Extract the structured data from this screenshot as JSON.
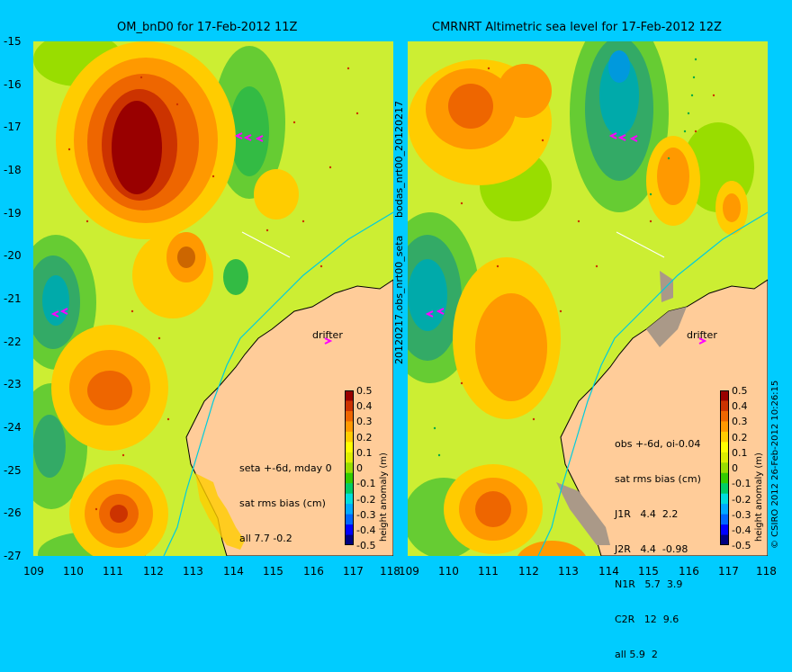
{
  "panels": [
    {
      "title": "OM_bnD0 for 17-Feb-2012 11Z",
      "stats": [
        "seta +-6d, mday 0",
        "sat rms bias (cm)",
        "all 7.7 -0.2"
      ],
      "drifter_label": "drifter"
    },
    {
      "title": "CMRNRT Altimetric sea level  for 17-Feb-2012 12Z",
      "stats": [
        "obs +-6d, oi-0.04",
        "sat rms bias (cm)",
        "J1R   4.4  2.2",
        "J2R   4.4  -0.98",
        "N1R   5.7  3.9",
        "C2R   12  9.6",
        "all 5.9  2"
      ],
      "drifter_label": "drifter"
    }
  ],
  "axes": {
    "lat_ticks": [
      "-15",
      "-16",
      "-17",
      "-18",
      "-19",
      "-20",
      "-21",
      "-22",
      "-23",
      "-24",
      "-25",
      "-26",
      "-27"
    ],
    "lon_ticks": [
      "109",
      "110",
      "111",
      "112",
      "113",
      "114",
      "115",
      "116",
      "117",
      "118"
    ]
  },
  "middle_labels": {
    "top": "bodas_nrt00_20120217",
    "bottom": "20120217.obs_nrt00_seta"
  },
  "colorbar": {
    "label": "height anomaly (m)",
    "ticks": [
      "0.5",
      "0.4",
      "0.3",
      "0.2",
      "0.1",
      "0",
      "-0.1",
      "-0.2",
      "-0.3",
      "-0.4",
      "-0.5"
    ],
    "colors": [
      "#000080",
      "#0000ff",
      "#0066ff",
      "#00aaff",
      "#00dddd",
      "#00cc66",
      "#33cc00",
      "#99dd00",
      "#ddee00",
      "#ffff00",
      "#ffcc00",
      "#ff9900",
      "#ee6600",
      "#cc3300",
      "#990000"
    ]
  },
  "credit": "© CSIRO 2012  26-Feb-2012 10:26:15",
  "colors": {
    "background": "#00ccff",
    "land": "#ffcc99",
    "field_base": "#ccee33",
    "high": "#990000",
    "low": "#0099aa"
  }
}
